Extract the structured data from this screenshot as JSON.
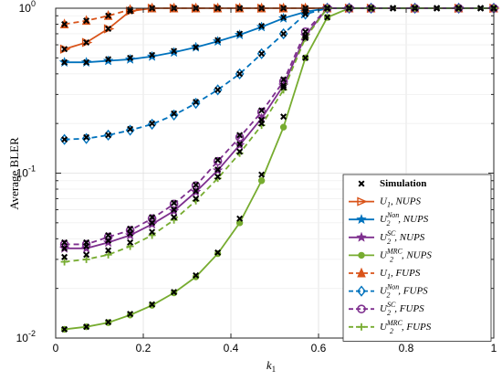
{
  "chart_data": {
    "type": "line",
    "title": "",
    "xlabel": "k",
    "xlabel_sub": "1",
    "ylabel": "Average BLER",
    "y_scale": "log",
    "xlim": [
      0,
      1
    ],
    "ylim": [
      0.01,
      1
    ],
    "x_ticks": [
      "0",
      "0.2",
      "0.4",
      "0.6",
      "0.8",
      "1"
    ],
    "y_ticks": [
      {
        "base": "10",
        "exp": "-2"
      },
      {
        "base": "10",
        "exp": "-1"
      },
      {
        "base": "10",
        "exp": "0"
      }
    ],
    "grid": true,
    "legend_position": "bottom-right",
    "x": [
      0.02,
      0.07,
      0.12,
      0.17,
      0.22,
      0.27,
      0.32,
      0.37,
      0.42,
      0.47,
      0.52,
      0.57,
      0.62,
      0.67,
      0.72,
      0.77,
      0.82,
      0.87,
      0.92,
      0.97,
      1.0
    ],
    "simulation": {
      "name": "Simulation",
      "groups": [
        [
          0.565,
          0.62,
          0.75,
          0.96,
          1.0,
          1.0,
          1.0,
          1.0,
          1.0,
          1.0,
          1.0,
          1.0,
          1.0,
          1.0,
          1.0,
          1.0,
          1.0,
          1.0,
          1.0,
          1.0,
          1.0
        ],
        [
          0.8,
          0.84,
          0.9,
          0.98,
          1.0,
          1.0,
          1.0,
          1.0,
          1.0,
          1.0,
          1.0,
          1.0,
          1.0,
          1.0,
          1.0,
          1.0,
          1.0,
          1.0,
          1.0,
          1.0,
          1.0
        ],
        [
          0.47,
          0.47,
          0.49,
          0.5,
          0.52,
          0.55,
          0.58,
          0.64,
          0.7,
          0.78,
          0.88,
          0.96,
          1.0,
          1.0,
          1.0,
          1.0,
          1.0,
          1.0,
          1.0,
          1.0,
          1.0
        ],
        [
          0.16,
          0.165,
          0.17,
          0.185,
          0.2,
          0.23,
          0.27,
          0.32,
          0.4,
          0.53,
          0.7,
          0.92,
          1.0,
          1.0,
          1.0,
          1.0,
          1.0,
          1.0,
          1.0,
          1.0,
          1.0
        ],
        [
          0.038,
          0.038,
          0.042,
          0.046,
          0.054,
          0.066,
          0.085,
          0.12,
          0.17,
          0.24,
          0.37,
          0.72,
          1.0,
          1.0,
          1.0,
          1.0,
          1.0,
          1.0,
          1.0,
          1.0,
          1.0
        ],
        [
          0.035,
          0.036,
          0.039,
          0.043,
          0.05,
          0.06,
          0.078,
          0.105,
          0.15,
          0.21,
          0.34,
          0.68,
          1.0,
          1.0,
          1.0,
          1.0,
          1.0,
          1.0,
          1.0,
          1.0,
          1.0
        ],
        [
          0.031,
          0.032,
          0.034,
          0.038,
          0.044,
          0.054,
          0.07,
          0.095,
          0.135,
          0.2,
          0.33,
          0.66,
          1.0,
          1.0,
          1.0,
          1.0,
          1.0,
          1.0,
          1.0,
          1.0,
          1.0
        ],
        [
          0.0113,
          0.0117,
          0.0125,
          0.014,
          0.016,
          0.019,
          0.024,
          0.033,
          0.053,
          0.098,
          0.22,
          0.5,
          0.88,
          1.0,
          1.0,
          1.0,
          1.0,
          1.0,
          1.0,
          1.0,
          1.0
        ]
      ]
    },
    "series": [
      {
        "name_main": "U",
        "name_sub": "1",
        "name_sup": "",
        "name_rest": ", NUPS",
        "color": "#D95319",
        "dash": false,
        "marker": "triangle-right",
        "values": [
          0.565,
          0.62,
          0.75,
          0.96,
          1.0,
          1.0,
          1.0,
          1.0,
          1.0,
          1.0,
          1.0,
          1.0,
          1.0,
          1.0,
          1.0,
          1.0,
          1.0,
          1.0,
          1.0,
          1.0,
          1.0
        ]
      },
      {
        "name_main": "U",
        "name_sub": "2",
        "name_sup": "Non",
        "name_rest": ", NUPS",
        "color": "#0072BD",
        "dash": false,
        "marker": "star",
        "values": [
          0.47,
          0.47,
          0.48,
          0.49,
          0.51,
          0.54,
          0.58,
          0.63,
          0.69,
          0.77,
          0.87,
          0.95,
          1.0,
          1.0,
          1.0,
          1.0,
          1.0,
          1.0,
          1.0,
          1.0,
          1.0
        ]
      },
      {
        "name_main": "U",
        "name_sub": "2",
        "name_sup": "SC",
        "name_rest": ", NUPS",
        "color": "#7E2F8E",
        "dash": false,
        "marker": "star",
        "values": [
          0.035,
          0.035,
          0.038,
          0.042,
          0.049,
          0.059,
          0.077,
          0.104,
          0.148,
          0.215,
          0.34,
          0.68,
          1.0,
          1.0,
          1.0,
          1.0,
          1.0,
          1.0,
          1.0,
          1.0,
          1.0
        ]
      },
      {
        "name_main": "U",
        "name_sub": "2",
        "name_sup": "MRC",
        "name_rest": ", NUPS",
        "color": "#77AC30",
        "dash": false,
        "marker": "circle",
        "values": [
          0.0113,
          0.0117,
          0.0124,
          0.0138,
          0.0158,
          0.0188,
          0.0235,
          0.0325,
          0.05,
          0.09,
          0.19,
          0.5,
          0.88,
          1.0,
          1.0,
          1.0,
          1.0,
          1.0,
          1.0,
          1.0,
          1.0
        ]
      },
      {
        "name_main": "U",
        "name_sub": "1",
        "name_sup": "",
        "name_rest": ", FUPS",
        "color": "#D95319",
        "dash": true,
        "marker": "triangle-up",
        "values": [
          0.8,
          0.84,
          0.9,
          0.98,
          1.0,
          1.0,
          1.0,
          1.0,
          1.0,
          1.0,
          1.0,
          1.0,
          1.0,
          1.0,
          1.0,
          1.0,
          1.0,
          1.0,
          1.0,
          1.0,
          1.0
        ]
      },
      {
        "name_main": "U",
        "name_sub": "2",
        "name_sup": "Non",
        "name_rest": ", FUPS",
        "color": "#0072BD",
        "dash": true,
        "marker": "diamond",
        "values": [
          0.16,
          0.162,
          0.17,
          0.182,
          0.198,
          0.225,
          0.265,
          0.32,
          0.4,
          0.53,
          0.7,
          0.92,
          1.0,
          1.0,
          1.0,
          1.0,
          1.0,
          1.0,
          1.0,
          1.0,
          1.0
        ]
      },
      {
        "name_main": "U",
        "name_sub": "2",
        "name_sup": "SC",
        "name_rest": ", FUPS",
        "color": "#7E2F8E",
        "dash": true,
        "marker": "circle-open",
        "values": [
          0.037,
          0.037,
          0.041,
          0.045,
          0.053,
          0.065,
          0.084,
          0.118,
          0.165,
          0.235,
          0.36,
          0.72,
          1.0,
          1.0,
          1.0,
          1.0,
          1.0,
          1.0,
          1.0,
          1.0,
          1.0
        ]
      },
      {
        "name_main": "U",
        "name_sub": "2",
        "name_sup": "MRC",
        "name_rest": ", FUPS",
        "color": "#77AC30",
        "dash": true,
        "marker": "plus",
        "values": [
          0.029,
          0.03,
          0.032,
          0.036,
          0.042,
          0.052,
          0.068,
          0.093,
          0.132,
          0.195,
          0.32,
          0.66,
          1.0,
          1.0,
          1.0,
          1.0,
          1.0,
          1.0,
          1.0,
          1.0,
          1.0
        ]
      }
    ]
  }
}
